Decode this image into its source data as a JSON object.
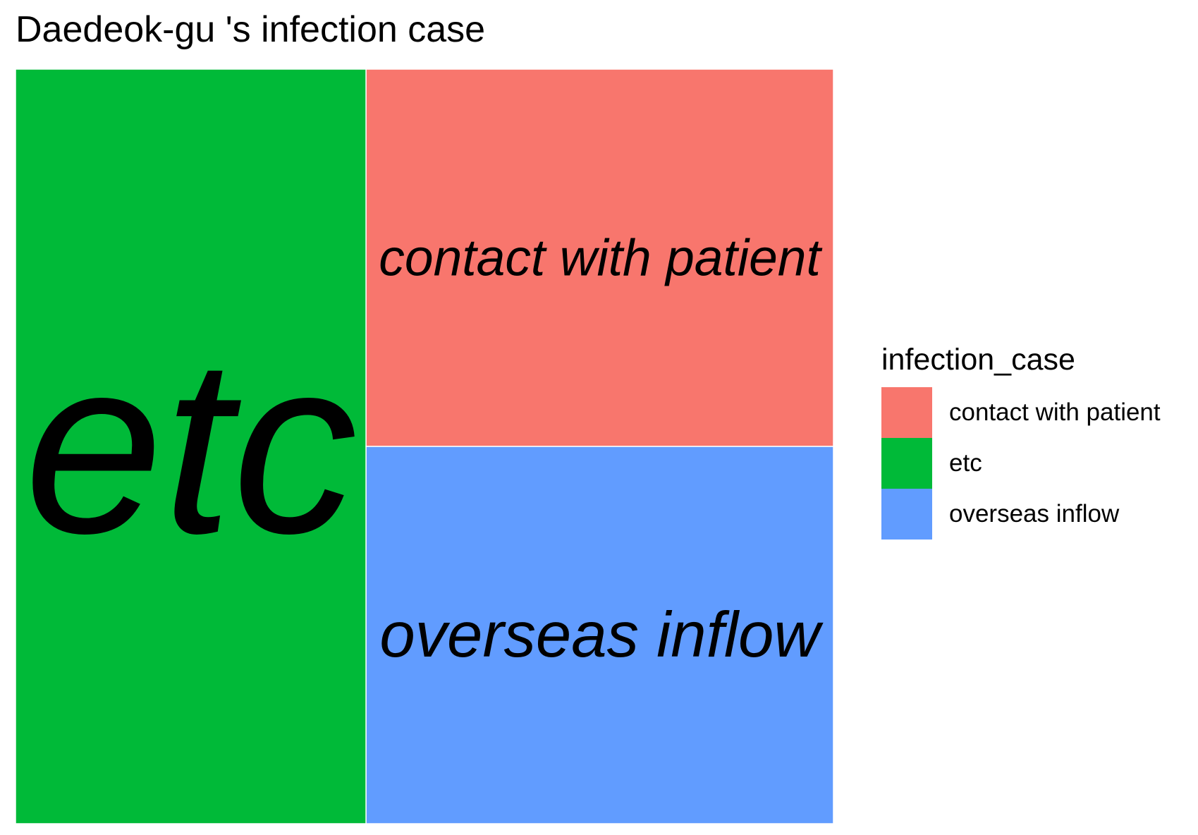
{
  "chart_data": {
    "type": "treemap",
    "title": "Daedeok-gu 's infection case",
    "legend_title": "infection_case",
    "legend_position": "right",
    "categories": [
      "contact with patient",
      "etc",
      "overseas inflow"
    ],
    "values": [
      2,
      3,
      2
    ],
    "colors": {
      "contact with patient": "#F8766D",
      "etc": "#00BA38",
      "overseas inflow": "#619CFF"
    }
  }
}
